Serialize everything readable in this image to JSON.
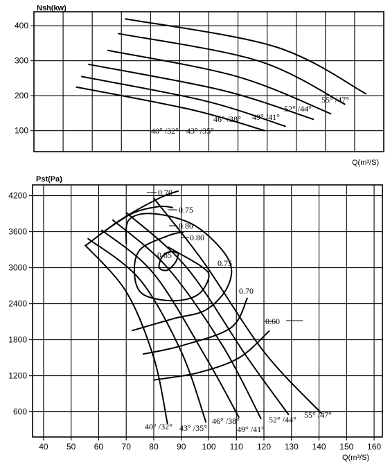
{
  "chart_data": [
    {
      "type": "line",
      "ylabel": "Nsh(kw)",
      "xlabel": "Q(m³/S)",
      "yticks": [
        "400",
        "300",
        "200",
        "100"
      ],
      "ylim": [
        40,
        440
      ],
      "grid": true,
      "series": [
        {
          "name": "40° /32°",
          "points": [
            [
              0.12,
              225
            ],
            [
              0.45,
              160
            ],
            [
              0.66,
              100
            ]
          ]
        },
        {
          "name": "43° /35°",
          "points": [
            [
              0.135,
              255
            ],
            [
              0.49,
              185
            ],
            [
              0.72,
              112
            ]
          ]
        },
        {
          "name": "46° /38°",
          "points": [
            [
              0.155,
              290
            ],
            [
              0.54,
              215
            ],
            [
              0.8,
              132
            ]
          ]
        },
        {
          "name": "49° /41°",
          "points": [
            [
              0.21,
              330
            ],
            [
              0.58,
              255
            ],
            [
              0.85,
              148
            ]
          ]
        },
        {
          "name": "52° /44°",
          "points": [
            [
              0.24,
              378
            ],
            [
              0.64,
              300
            ],
            [
              0.89,
              175
            ]
          ]
        },
        {
          "name": "55° /47°",
          "points": [
            [
              0.26,
              420
            ],
            [
              0.69,
              340
            ],
            [
              0.95,
              205
            ]
          ]
        }
      ],
      "labels": [
        "40° /32°",
        "43° /35°",
        "46° /38°",
        "49° /41°",
        "52° /44°",
        "55° /47°"
      ]
    },
    {
      "type": "line",
      "ylabel": "Pst(Pa)",
      "xlabel": "Q(m³/S)",
      "xticks": [
        "40",
        "50",
        "60",
        "70",
        "80",
        "90",
        "100",
        "110",
        "120",
        "130",
        "140",
        "150",
        "160"
      ],
      "xlim": [
        36,
        163
      ],
      "yticks": [
        "4200",
        "3600",
        "3000",
        "2400",
        "1800",
        "1200",
        "600"
      ],
      "ylim": [
        180,
        4380
      ],
      "grid": true,
      "blade_angles": [
        {
          "name": "40° /32°",
          "points": [
            [
              55,
              3380
            ],
            [
              70,
              2600
            ],
            [
              80,
              1500
            ],
            [
              85,
              400
            ]
          ]
        },
        {
          "name": "43° /35°",
          "points": [
            [
              56,
              3490
            ],
            [
              75,
              2800
            ],
            [
              90,
              1600
            ],
            [
              99,
              420
            ]
          ]
        },
        {
          "name": "46° /38°",
          "points": [
            [
              61,
              3630
            ],
            [
              80,
              2900
            ],
            [
              99,
              1500
            ],
            [
              111,
              500
            ]
          ]
        },
        {
          "name": "49° /41°",
          "points": [
            [
              65,
              3800
            ],
            [
              85,
              3000
            ],
            [
              105,
              1700
            ],
            [
              119,
              480
            ]
          ]
        },
        {
          "name": "52° /44°",
          "points": [
            [
              70,
              3920
            ],
            [
              92,
              3000
            ],
            [
              114,
              1500
            ],
            [
              129,
              550
            ]
          ]
        },
        {
          "name": "55° /47°",
          "points": [
            [
              80,
              4160
            ],
            [
              98,
              3100
            ],
            [
              120,
              1600
            ],
            [
              141,
              570
            ]
          ]
        }
      ],
      "efficiency_curves": [
        {
          "label": "0.70",
          "points": [
            [
              55,
              3360
            ],
            [
              68,
              3800
            ],
            [
              82,
              4160
            ],
            [
              89,
              4280
            ]
          ]
        },
        {
          "label": "0.75",
          "points": [
            [
              60,
              3540
            ],
            [
              72,
              3900
            ],
            [
              82,
              4020
            ],
            [
              87,
              4000
            ]
          ]
        },
        {
          "label": "0.80",
          "points": [
            [
              85,
              3350
            ],
            [
              97,
              3030
            ],
            [
              100,
              2850
            ],
            [
              96,
              2550
            ],
            [
              87,
              2450
            ],
            [
              76,
              2560
            ],
            [
              73,
              2900
            ],
            [
              75,
              3300
            ],
            [
              85,
              3530
            ],
            [
              91,
              3600
            ]
          ]
        },
        {
          "label": "0.85",
          "points": [
            [
              89,
              3240
            ],
            [
              88,
              3100
            ],
            [
              85,
              2960
            ],
            [
              82,
              3000
            ],
            [
              83,
              3180
            ],
            [
              86,
              3270
            ],
            [
              89,
              3240
            ]
          ]
        },
        {
          "label": "0.75",
          "points": [
            [
              70,
              3400
            ],
            [
              71,
              3800
            ],
            [
              80,
              3900
            ],
            [
              95,
              3700
            ],
            [
              107,
              3150
            ],
            [
              107,
              2700
            ],
            [
              99,
              2300
            ],
            [
              87,
              2150
            ],
            [
              72,
              1950
            ]
          ]
        },
        {
          "label": "0.70",
          "points": [
            [
              114,
              2500
            ],
            [
              108,
              2000
            ],
            [
              90,
              1700
            ],
            [
              76,
              1560
            ]
          ]
        },
        {
          "label": "0.60",
          "points": [
            [
              122,
              1950
            ],
            [
              111,
              1500
            ],
            [
              96,
              1250
            ],
            [
              80,
              1130
            ]
          ]
        }
      ],
      "efficiency_labels": [
        "0.70",
        "0.75",
        "0.80",
        "0.80",
        "0.85",
        "0.75",
        "0.70",
        "0.60"
      ],
      "labels": [
        "40° /32°",
        "43° /35°",
        "46° /38°",
        "49° /41°",
        "52° /44°",
        "55° /47°"
      ]
    }
  ]
}
